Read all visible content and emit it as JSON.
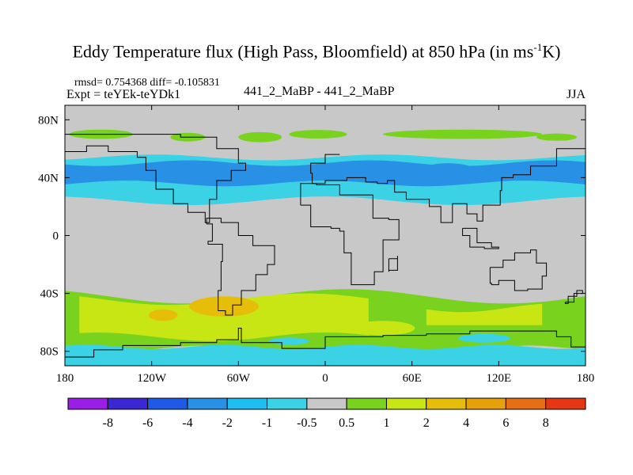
{
  "title": {
    "main": "Eddy Temperature flux (High Pass, Bloomfield) at 850 hPa (in ms",
    "superscript": "-1",
    "end": "K)"
  },
  "stats": "rmsd= 0.754368 diff= -0.105831",
  "expt": "Expt = teYEk-teYDk1",
  "center_label": "441_2_MaBP - 441_2_MaBP",
  "season": "JJA",
  "chart_data": {
    "type": "heatmap",
    "title": "Eddy Temperature flux (High Pass, Bloomfield) at 850 hPa (in ms-1K)",
    "xlim": [
      -180,
      180
    ],
    "ylim": [
      -90,
      90
    ],
    "x_ticks": [
      {
        "value": -180,
        "label": "180"
      },
      {
        "value": -120,
        "label": "120W"
      },
      {
        "value": -60,
        "label": "60W"
      },
      {
        "value": 0,
        "label": "0"
      },
      {
        "value": 60,
        "label": "60E"
      },
      {
        "value": 120,
        "label": "120E"
      },
      {
        "value": 180,
        "label": "180"
      }
    ],
    "y_ticks": [
      {
        "value": 80,
        "label": "80N"
      },
      {
        "value": 40,
        "label": "40N"
      },
      {
        "value": 0,
        "label": "0"
      },
      {
        "value": -40,
        "label": "40S"
      },
      {
        "value": -80,
        "label": "80S"
      }
    ],
    "colorbar": {
      "labels": [
        "-8",
        "-6",
        "-4",
        "-2",
        "-1",
        "-0.5",
        "0.5",
        "1",
        "2",
        "4",
        "6",
        "8"
      ],
      "colors": [
        "#9b1ee6",
        "#3c28d2",
        "#1e5ae6",
        "#2891e6",
        "#1ebef0",
        "#3cd2e6",
        "#c8c8c8",
        "#78d21e",
        "#c8e614",
        "#e6be0a",
        "#e6a00a",
        "#e66e14",
        "#e63714"
      ]
    },
    "background_level": "#c8c8c8",
    "regions": [
      {
        "name": "arctic-positive-band",
        "level": "#78d21e",
        "lon": [
          -180,
          180
        ],
        "lat": [
          62,
          78
        ],
        "note": "patchy 0.5 to 1 near 70N"
      },
      {
        "name": "northern-midlatitude-negative-band",
        "level": "#3cd2e6",
        "lon": [
          -180,
          180
        ],
        "lat": [
          30,
          55
        ],
        "note": "-1 to -0.5"
      },
      {
        "name": "northern-midlatitude-core",
        "level": "#2891e6",
        "lon": [
          -180,
          180
        ],
        "lat": [
          35,
          52
        ],
        "note": "-2 to -1, darker -4 to -2 near 20E-100E"
      },
      {
        "name": "southern-positive-band",
        "level": "#78d21e",
        "lon": [
          -180,
          180
        ],
        "lat": [
          -80,
          -35
        ],
        "note": "0.5 to 2"
      },
      {
        "name": "southern-core",
        "level": "#c8e614",
        "lon": [
          -160,
          40
        ],
        "lat": [
          -75,
          -38
        ],
        "note": "1 to 2"
      },
      {
        "name": "southern-max",
        "level": "#e6be0a",
        "lon": [
          -95,
          -45
        ],
        "lat": [
          -60,
          -42
        ],
        "note": "2 to 4"
      },
      {
        "name": "antarctic-coast-negative",
        "level": "#3cd2e6",
        "lon": [
          -180,
          180
        ],
        "lat": [
          -88,
          -78
        ],
        "note": "-1 to -0.5"
      }
    ]
  }
}
